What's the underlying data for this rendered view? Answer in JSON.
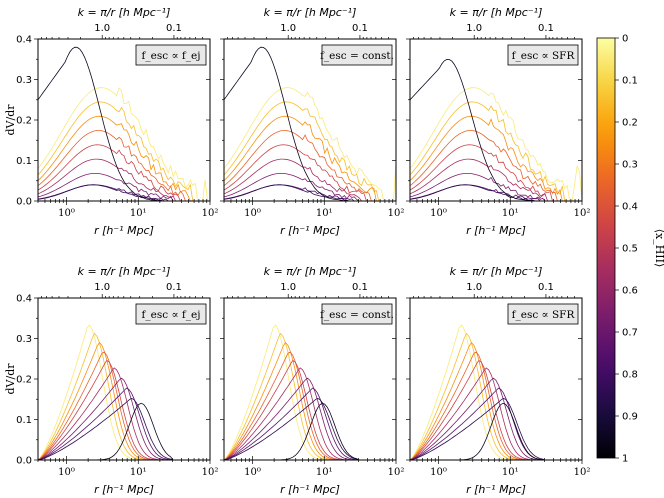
{
  "figure": {
    "xlabel": "r [h⁻¹ Mpc]",
    "ylabel": "dV/dr",
    "top_label": "k = π/r [h Mpc⁻¹]",
    "x_ticks": [
      "10⁰",
      "10¹",
      "10²"
    ],
    "top_ticks": [
      "1.0",
      "0.1"
    ],
    "y_ticks": [
      "0.0",
      "0.1",
      "0.2",
      "0.3",
      "0.4"
    ],
    "colorbar_label": "⟨x_HII⟩",
    "colorbar_ticks": [
      "0",
      "0.1",
      "0.2",
      "0.3",
      "0.4",
      "0.5",
      "0.6",
      "0.7",
      "0.8",
      "0.9",
      "1"
    ],
    "colorbar_colors": [
      "#000004",
      "#1b0c41",
      "#4a0c6b",
      "#781c6d",
      "#a52c60",
      "#cf4446",
      "#ed6925",
      "#fb9b06",
      "#f7d13d",
      "#fcffa4"
    ],
    "colormap": "inferno (reversed)"
  },
  "chart_data": [
    {
      "type": "line",
      "panel": "top-left",
      "label": "f_esc ∝ f_ej",
      "xscale": "log",
      "xlim": [
        0.4,
        100
      ],
      "ylim": [
        0,
        0.4
      ],
      "xlabel": "r [h⁻¹ Mpc]",
      "ylabel": "dV/dr",
      "series_note": "ionized bubble size distribution, one curve per mean ionized fraction 0.05-0.95"
    },
    {
      "type": "line",
      "panel": "top-middle",
      "label": "f_esc = const.",
      "xscale": "log",
      "xlim": [
        0.4,
        100
      ],
      "ylim": [
        0,
        0.4
      ],
      "xlabel": "r [h⁻¹ Mpc]",
      "ylabel": ""
    },
    {
      "type": "line",
      "panel": "top-right",
      "label": "f_esc ∝ SFR",
      "xscale": "log",
      "xlim": [
        0.4,
        100
      ],
      "ylim": [
        0,
        0.4
      ],
      "xlabel": "r [h⁻¹ Mpc]",
      "ylabel": ""
    },
    {
      "type": "line",
      "panel": "bottom-left",
      "label": "f_esc ∝ f_ej",
      "xscale": "log",
      "xlim": [
        0.4,
        100
      ],
      "ylim": [
        0,
        0.4
      ],
      "xlabel": "r [h⁻¹ Mpc]",
      "ylabel": "dV/dr",
      "series_note": "neutral region size distribution"
    },
    {
      "type": "line",
      "panel": "bottom-middle",
      "label": "f_esc = const.",
      "xscale": "log",
      "xlim": [
        0.4,
        100
      ],
      "ylim": [
        0,
        0.4
      ],
      "xlabel": "r [h⁻¹ Mpc]",
      "ylabel": ""
    },
    {
      "type": "line",
      "panel": "bottom-right",
      "label": "f_esc ∝ SFR",
      "xscale": "log",
      "xlim": [
        0.4,
        100
      ],
      "ylim": [
        0,
        0.4
      ],
      "xlabel": "r [h⁻¹ Mpc]",
      "ylabel": ""
    }
  ]
}
